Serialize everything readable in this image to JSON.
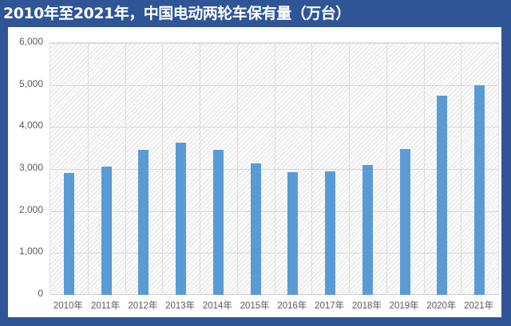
{
  "header": {
    "title": "2010年至2021年，中国电动两轮车保有量（万台）"
  },
  "colors": {
    "background": "#2f5597",
    "bar": "#5b9bd5",
    "panel": "#ffffff",
    "gridline": "#d9d9d9",
    "text": "#595959"
  },
  "chart_data": {
    "type": "bar",
    "title": "2010年至2021年，中国电动两轮车保有量（万台）",
    "xlabel": "",
    "ylabel": "",
    "unit": "万台",
    "categories": [
      "2010年",
      "2011年",
      "2012年",
      "2013年",
      "2014年",
      "2015年",
      "2016年",
      "2017年",
      "2018年",
      "2019年",
      "2020年",
      "2021年"
    ],
    "values": [
      2900,
      3050,
      3450,
      3620,
      3450,
      3130,
      2930,
      2950,
      3100,
      3470,
      4750,
      4990
    ],
    "ylim": [
      0,
      6000
    ],
    "yticks": [
      0,
      1000,
      2000,
      3000,
      4000,
      5000,
      6000
    ],
    "ytick_labels": [
      "0",
      "1,000",
      "2,000",
      "3,000",
      "4,000",
      "5,000",
      "6,000"
    ],
    "grid": true,
    "legend": null
  }
}
